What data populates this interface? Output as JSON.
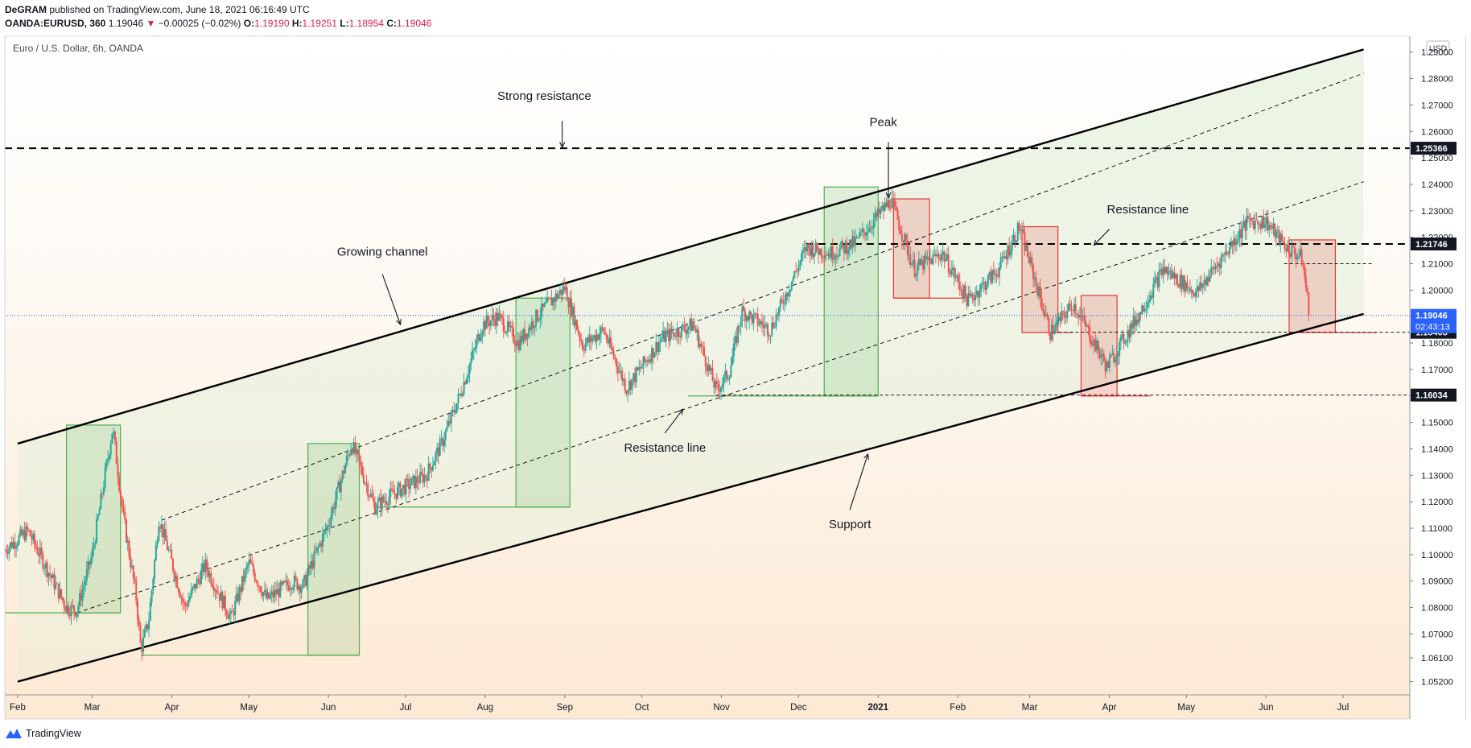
{
  "header": {
    "author": "DeGRAM",
    "published": "published on TradingView.com, June 18, 2021 06:16:49 UTC",
    "symbol": "OANDA:EURUSD, 360",
    "last": "1.19046",
    "change": "−0.00025 (−0.02%)",
    "o_label": "O:",
    "o_value": "1.19190",
    "h_label": "H:",
    "h_value": "1.19251",
    "l_label": "L:",
    "l_value": "1.18954",
    "c_label": "C:",
    "c_value": "1.19046"
  },
  "footer": {
    "brand": "TradingView"
  },
  "colors": {
    "candle_up": "#26a69a",
    "candle_down": "#ef5350",
    "green_box": "#4caf50",
    "red_box": "#e53935",
    "price_line": "#2962ff",
    "channel_fill_top": "#eef5e8",
    "channel_fill_bottom": "#fde7cf"
  },
  "chart_data": {
    "type": "candlestick",
    "title": "Euro / U.S. Dollar, 6h, OANDA",
    "currency": "USD",
    "y_range": [
      1.047,
      1.296
    ],
    "x_range": [
      "2020-01-27",
      "2021-07-27"
    ],
    "x_tick_labels": [
      {
        "label": "Feb",
        "date": "2020-02-01"
      },
      {
        "label": "Mar",
        "date": "2020-03-01"
      },
      {
        "label": "Apr",
        "date": "2020-04-01"
      },
      {
        "label": "May",
        "date": "2020-05-01"
      },
      {
        "label": "Jun",
        "date": "2020-06-01"
      },
      {
        "label": "Jul",
        "date": "2020-07-01"
      },
      {
        "label": "Aug",
        "date": "2020-08-01"
      },
      {
        "label": "Sep",
        "date": "2020-09-01"
      },
      {
        "label": "Oct",
        "date": "2020-10-01"
      },
      {
        "label": "Nov",
        "date": "2020-11-01"
      },
      {
        "label": "Dec",
        "date": "2020-12-01"
      },
      {
        "label": "2021",
        "date": "2021-01-01",
        "bold": true
      },
      {
        "label": "Feb",
        "date": "2021-02-01"
      },
      {
        "label": "Mar",
        "date": "2021-03-01"
      },
      {
        "label": "Apr",
        "date": "2021-04-01"
      },
      {
        "label": "May",
        "date": "2021-05-01"
      },
      {
        "label": "Jun",
        "date": "2021-06-01"
      },
      {
        "label": "Jul",
        "date": "2021-07-01"
      }
    ],
    "y_tick_labels": [
      "1.05200",
      "1.06100",
      "1.07000",
      "1.08000",
      "1.09000",
      "1.10000",
      "1.11000",
      "1.12000",
      "1.13000",
      "1.14000",
      "1.15000",
      "1.16000",
      "1.17000",
      "1.18000",
      "1.19000",
      "1.20000",
      "1.21000",
      "1.22000",
      "1.23000",
      "1.24000",
      "1.25000",
      "1.26000",
      "1.27000",
      "1.28000",
      "1.29000"
    ],
    "price_labels": [
      {
        "value": 1.25366,
        "text": "1.25366",
        "style": "dark"
      },
      {
        "value": 1.21746,
        "text": "1.21746",
        "style": "dark"
      },
      {
        "value": 1.18408,
        "text": "1.18408",
        "style": "dark"
      },
      {
        "value": 1.16034,
        "text": "1.16034",
        "style": "dark"
      }
    ],
    "last_price": {
      "value": 1.19046,
      "text": "1.19046",
      "countdown": "02:43:13"
    },
    "path": [
      [
        "2020-01-27",
        1.102
      ],
      [
        "2020-02-05",
        1.109
      ],
      [
        "2020-02-20",
        1.08
      ],
      [
        "2020-02-24",
        1.079
      ],
      [
        "2020-03-01",
        1.1
      ],
      [
        "2020-03-06",
        1.13
      ],
      [
        "2020-03-09",
        1.148
      ],
      [
        "2020-03-13",
        1.115
      ],
      [
        "2020-03-18",
        1.085
      ],
      [
        "2020-03-20",
        1.064
      ],
      [
        "2020-03-23",
        1.075
      ],
      [
        "2020-03-27",
        1.114
      ],
      [
        "2020-04-06",
        1.08
      ],
      [
        "2020-04-14",
        1.096
      ],
      [
        "2020-04-24",
        1.076
      ],
      [
        "2020-05-01",
        1.097
      ],
      [
        "2020-05-08",
        1.083
      ],
      [
        "2020-05-18",
        1.09
      ],
      [
        "2020-05-22",
        1.088
      ],
      [
        "2020-06-01",
        1.112
      ],
      [
        "2020-06-10",
        1.142
      ],
      [
        "2020-06-19",
        1.118
      ],
      [
        "2020-06-26",
        1.123
      ],
      [
        "2020-07-09",
        1.13
      ],
      [
        "2020-07-15",
        1.142
      ],
      [
        "2020-07-22",
        1.16
      ],
      [
        "2020-07-31",
        1.187
      ],
      [
        "2020-08-06",
        1.19
      ],
      [
        "2020-08-14",
        1.18
      ],
      [
        "2020-08-21",
        1.19
      ],
      [
        "2020-09-01",
        1.201
      ],
      [
        "2020-09-08",
        1.179
      ],
      [
        "2020-09-16",
        1.185
      ],
      [
        "2020-09-25",
        1.163
      ],
      [
        "2020-10-09",
        1.182
      ],
      [
        "2020-10-21",
        1.187
      ],
      [
        "2020-10-30",
        1.162
      ],
      [
        "2020-11-04",
        1.169
      ],
      [
        "2020-11-09",
        1.192
      ],
      [
        "2020-11-20",
        1.185
      ],
      [
        "2020-12-04",
        1.216
      ],
      [
        "2020-12-14",
        1.214
      ],
      [
        "2020-12-23",
        1.218
      ],
      [
        "2021-01-06",
        1.234
      ],
      [
        "2021-01-15",
        1.208
      ],
      [
        "2021-01-26",
        1.214
      ],
      [
        "2021-02-05",
        1.196
      ],
      [
        "2021-02-17",
        1.208
      ],
      [
        "2021-02-25",
        1.224
      ],
      [
        "2021-03-09",
        1.184
      ],
      [
        "2021-03-18",
        1.195
      ],
      [
        "2021-03-31",
        1.171
      ],
      [
        "2021-04-12",
        1.19
      ],
      [
        "2021-04-22",
        1.208
      ],
      [
        "2021-05-05",
        1.199
      ],
      [
        "2021-05-25",
        1.226
      ],
      [
        "2021-06-01",
        1.226
      ],
      [
        "2021-06-08",
        1.217
      ],
      [
        "2021-06-15",
        1.212
      ],
      [
        "2021-06-18",
        1.1905
      ]
    ],
    "channel": {
      "upper": [
        [
          "2020-02-01",
          1.142
        ],
        [
          "2021-07-09",
          1.291
        ]
      ],
      "mid_upper": [
        [
          "2020-03-28",
          1.113
        ],
        [
          "2021-07-09",
          1.282
        ]
      ],
      "mid_lower": [
        [
          "2020-02-24",
          1.078
        ],
        [
          "2021-07-09",
          1.241
        ]
      ],
      "lower": [
        [
          "2020-02-01",
          1.052
        ],
        [
          "2021-07-09",
          1.191
        ]
      ]
    },
    "horizontal_levels": [
      {
        "y": 1.25366,
        "from": "2020-01-27",
        "to": "2021-07-27",
        "style": "bold-dashed"
      },
      {
        "y": 1.21746,
        "from": "2020-12-04",
        "to": "2021-07-27",
        "style": "bold-dashed"
      },
      {
        "y": 1.21,
        "from": "2021-06-08",
        "to": "2021-07-13",
        "style": "thin-dashed"
      },
      {
        "y": 1.18408,
        "from": "2021-03-10",
        "to": "2021-07-27",
        "style": "thin-dashed"
      },
      {
        "y": 1.16034,
        "from": "2020-10-30",
        "to": "2021-07-27",
        "style": "thin-dashed"
      },
      {
        "y": 1.19046,
        "from": "2020-01-27",
        "to": "2021-07-27",
        "style": "dotted-blue"
      }
    ],
    "zones": [
      {
        "color": "green",
        "x1": "2020-02-20",
        "x2": "2020-03-12",
        "y_high": 1.149,
        "y_low": 1.078,
        "base_from": "2020-01-27"
      },
      {
        "color": "green",
        "x1": "2020-05-24",
        "x2": "2020-06-13",
        "y_high": 1.142,
        "y_low": 1.062,
        "base_from": "2020-03-20"
      },
      {
        "color": "green",
        "x1": "2020-08-13",
        "x2": "2020-09-03",
        "y_high": 1.197,
        "y_low": 1.118,
        "base_from": "2020-06-19"
      },
      {
        "color": "green",
        "x1": "2020-12-11",
        "x2": "2021-01-01",
        "y_high": 1.239,
        "y_low": 1.16,
        "base_from": "2020-10-19"
      },
      {
        "color": "red",
        "x1": "2021-01-07",
        "x2": "2021-01-21",
        "y_high": 1.2345,
        "y_low": 1.197,
        "base_to": "2021-02-05"
      },
      {
        "color": "red",
        "x1": "2021-02-26",
        "x2": "2021-03-12",
        "y_high": 1.224,
        "y_low": 1.184,
        "base_to": "2021-03-18"
      },
      {
        "color": "red",
        "x1": "2021-03-21",
        "x2": "2021-04-04",
        "y_high": 1.198,
        "y_low": 1.16,
        "base_to": "2021-04-17"
      },
      {
        "color": "red",
        "x1": "2021-06-10",
        "x2": "2021-06-28",
        "y_high": 1.219,
        "y_low": 1.184,
        "base_to": "2021-07-14"
      }
    ],
    "annotations": [
      {
        "text": "Strong resistance",
        "x": "2020-08-24",
        "y": 1.272,
        "arrow_from": [
          "2020-08-31",
          1.264
        ],
        "arrow_to": [
          "2020-08-31",
          1.254
        ]
      },
      {
        "text": "Peak",
        "x": "2021-01-03",
        "y": 1.262,
        "arrow_from": [
          "2021-01-05",
          1.256
        ],
        "arrow_to": [
          "2021-01-05",
          1.235
        ]
      },
      {
        "text": "Resistance line",
        "x": "2021-04-16",
        "y": 1.229,
        "arrow_from": [
          "2021-04-01",
          1.223
        ],
        "arrow_to": [
          "2021-03-26",
          1.217
        ]
      },
      {
        "text": "Growing channel",
        "x": "2020-06-22",
        "y": 1.213,
        "arrow_from": [
          "2020-06-22",
          1.206
        ],
        "arrow_to": [
          "2020-06-29",
          1.187
        ]
      },
      {
        "text": "Resistance line",
        "x": "2020-10-10",
        "y": 1.139,
        "arrow_from": [
          "2020-10-10",
          1.146
        ],
        "arrow_to": [
          "2020-10-17",
          1.155
        ]
      },
      {
        "text": "Support",
        "x": "2020-12-21",
        "y": 1.11,
        "arrow_from": [
          "2020-12-21",
          1.117
        ],
        "arrow_to": [
          "2020-12-28",
          1.138
        ]
      }
    ]
  }
}
